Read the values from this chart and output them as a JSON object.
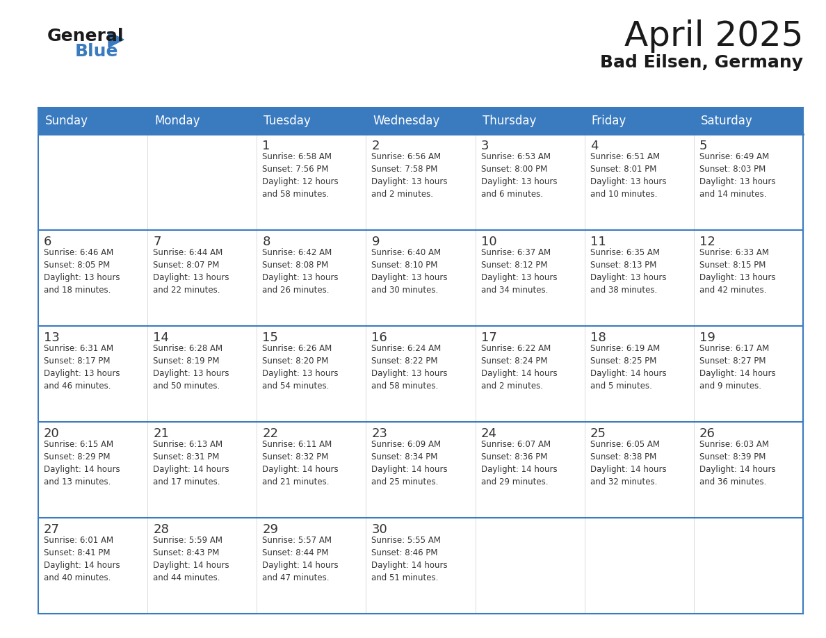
{
  "title": "April 2025",
  "subtitle": "Bad Eilsen, Germany",
  "header_color": "#3a7abf",
  "header_text_color": "#ffffff",
  "cell_bg_color": "#ffffff",
  "cell_alt_bg_color": "#f5f5f5",
  "border_color": "#3a7abf",
  "text_color": "#333333",
  "days_of_week": [
    "Sunday",
    "Monday",
    "Tuesday",
    "Wednesday",
    "Thursday",
    "Friday",
    "Saturday"
  ],
  "weeks": [
    [
      {
        "day": "",
        "info": ""
      },
      {
        "day": "",
        "info": ""
      },
      {
        "day": "1",
        "info": "Sunrise: 6:58 AM\nSunset: 7:56 PM\nDaylight: 12 hours\nand 58 minutes."
      },
      {
        "day": "2",
        "info": "Sunrise: 6:56 AM\nSunset: 7:58 PM\nDaylight: 13 hours\nand 2 minutes."
      },
      {
        "day": "3",
        "info": "Sunrise: 6:53 AM\nSunset: 8:00 PM\nDaylight: 13 hours\nand 6 minutes."
      },
      {
        "day": "4",
        "info": "Sunrise: 6:51 AM\nSunset: 8:01 PM\nDaylight: 13 hours\nand 10 minutes."
      },
      {
        "day": "5",
        "info": "Sunrise: 6:49 AM\nSunset: 8:03 PM\nDaylight: 13 hours\nand 14 minutes."
      }
    ],
    [
      {
        "day": "6",
        "info": "Sunrise: 6:46 AM\nSunset: 8:05 PM\nDaylight: 13 hours\nand 18 minutes."
      },
      {
        "day": "7",
        "info": "Sunrise: 6:44 AM\nSunset: 8:07 PM\nDaylight: 13 hours\nand 22 minutes."
      },
      {
        "day": "8",
        "info": "Sunrise: 6:42 AM\nSunset: 8:08 PM\nDaylight: 13 hours\nand 26 minutes."
      },
      {
        "day": "9",
        "info": "Sunrise: 6:40 AM\nSunset: 8:10 PM\nDaylight: 13 hours\nand 30 minutes."
      },
      {
        "day": "10",
        "info": "Sunrise: 6:37 AM\nSunset: 8:12 PM\nDaylight: 13 hours\nand 34 minutes."
      },
      {
        "day": "11",
        "info": "Sunrise: 6:35 AM\nSunset: 8:13 PM\nDaylight: 13 hours\nand 38 minutes."
      },
      {
        "day": "12",
        "info": "Sunrise: 6:33 AM\nSunset: 8:15 PM\nDaylight: 13 hours\nand 42 minutes."
      }
    ],
    [
      {
        "day": "13",
        "info": "Sunrise: 6:31 AM\nSunset: 8:17 PM\nDaylight: 13 hours\nand 46 minutes."
      },
      {
        "day": "14",
        "info": "Sunrise: 6:28 AM\nSunset: 8:19 PM\nDaylight: 13 hours\nand 50 minutes."
      },
      {
        "day": "15",
        "info": "Sunrise: 6:26 AM\nSunset: 8:20 PM\nDaylight: 13 hours\nand 54 minutes."
      },
      {
        "day": "16",
        "info": "Sunrise: 6:24 AM\nSunset: 8:22 PM\nDaylight: 13 hours\nand 58 minutes."
      },
      {
        "day": "17",
        "info": "Sunrise: 6:22 AM\nSunset: 8:24 PM\nDaylight: 14 hours\nand 2 minutes."
      },
      {
        "day": "18",
        "info": "Sunrise: 6:19 AM\nSunset: 8:25 PM\nDaylight: 14 hours\nand 5 minutes."
      },
      {
        "day": "19",
        "info": "Sunrise: 6:17 AM\nSunset: 8:27 PM\nDaylight: 14 hours\nand 9 minutes."
      }
    ],
    [
      {
        "day": "20",
        "info": "Sunrise: 6:15 AM\nSunset: 8:29 PM\nDaylight: 14 hours\nand 13 minutes."
      },
      {
        "day": "21",
        "info": "Sunrise: 6:13 AM\nSunset: 8:31 PM\nDaylight: 14 hours\nand 17 minutes."
      },
      {
        "day": "22",
        "info": "Sunrise: 6:11 AM\nSunset: 8:32 PM\nDaylight: 14 hours\nand 21 minutes."
      },
      {
        "day": "23",
        "info": "Sunrise: 6:09 AM\nSunset: 8:34 PM\nDaylight: 14 hours\nand 25 minutes."
      },
      {
        "day": "24",
        "info": "Sunrise: 6:07 AM\nSunset: 8:36 PM\nDaylight: 14 hours\nand 29 minutes."
      },
      {
        "day": "25",
        "info": "Sunrise: 6:05 AM\nSunset: 8:38 PM\nDaylight: 14 hours\nand 32 minutes."
      },
      {
        "day": "26",
        "info": "Sunrise: 6:03 AM\nSunset: 8:39 PM\nDaylight: 14 hours\nand 36 minutes."
      }
    ],
    [
      {
        "day": "27",
        "info": "Sunrise: 6:01 AM\nSunset: 8:41 PM\nDaylight: 14 hours\nand 40 minutes."
      },
      {
        "day": "28",
        "info": "Sunrise: 5:59 AM\nSunset: 8:43 PM\nDaylight: 14 hours\nand 44 minutes."
      },
      {
        "day": "29",
        "info": "Sunrise: 5:57 AM\nSunset: 8:44 PM\nDaylight: 14 hours\nand 47 minutes."
      },
      {
        "day": "30",
        "info": "Sunrise: 5:55 AM\nSunset: 8:46 PM\nDaylight: 14 hours\nand 51 minutes."
      },
      {
        "day": "",
        "info": ""
      },
      {
        "day": "",
        "info": ""
      },
      {
        "day": "",
        "info": ""
      }
    ]
  ],
  "logo_text_general": "General",
  "logo_text_blue": "Blue",
  "logo_color_general": "#1a1a1a",
  "logo_color_blue": "#3a7abf",
  "logo_triangle_color": "#3a7abf"
}
